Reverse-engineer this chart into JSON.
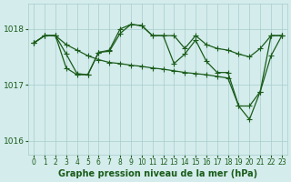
{
  "background_color": "#d4ecec",
  "grid_color": "#aacccc",
  "line_color": "#1a5c1a",
  "title": "Graphe pression niveau de la mer (hPa)",
  "ylim": [
    1015.75,
    1018.45
  ],
  "yticks": [
    1016,
    1017,
    1018
  ],
  "xlim": [
    -0.5,
    23.5
  ],
  "xticks": [
    0,
    1,
    2,
    3,
    4,
    5,
    6,
    7,
    8,
    9,
    10,
    11,
    12,
    13,
    14,
    15,
    16,
    17,
    18,
    19,
    20,
    21,
    22,
    23
  ],
  "series1_x": [
    0,
    1,
    2,
    3,
    4,
    5,
    6,
    7,
    8,
    9,
    10,
    11,
    12,
    13,
    14,
    15,
    16,
    17,
    18,
    19,
    20,
    21,
    22,
    23
  ],
  "series1_y": [
    1017.75,
    1017.88,
    1017.88,
    1017.55,
    1017.2,
    1017.18,
    1017.58,
    1017.6,
    1017.92,
    1018.08,
    1018.06,
    1017.88,
    1017.88,
    1017.88,
    1017.65,
    1017.88,
    1017.72,
    1017.65,
    1017.62,
    1017.55,
    1017.5,
    1017.65,
    1017.88,
    1017.88
  ],
  "series2_x": [
    0,
    1,
    2,
    3,
    4,
    5,
    6,
    7,
    8,
    9,
    10,
    11,
    12,
    13,
    14,
    15,
    16,
    17,
    18,
    19,
    20,
    21,
    22,
    23
  ],
  "series2_y": [
    1017.75,
    1017.88,
    1017.88,
    1017.3,
    1017.18,
    1017.18,
    1017.58,
    1017.62,
    1018.0,
    1018.08,
    1018.06,
    1017.88,
    1017.88,
    1017.38,
    1017.55,
    1017.8,
    1017.42,
    1017.22,
    1017.22,
    1016.62,
    1016.38,
    1016.88,
    1017.52,
    1017.88
  ],
  "series3_x": [
    0,
    1,
    2,
    3,
    4,
    5,
    6,
    7,
    8,
    9,
    10,
    11,
    12,
    13,
    14,
    15,
    16,
    17,
    18,
    19,
    20,
    21,
    22,
    23
  ],
  "series3_y": [
    1017.75,
    1017.88,
    1017.88,
    1017.72,
    1017.62,
    1017.52,
    1017.45,
    1017.4,
    1017.38,
    1017.35,
    1017.33,
    1017.3,
    1017.28,
    1017.25,
    1017.22,
    1017.2,
    1017.18,
    1017.15,
    1017.12,
    1016.62,
    1016.62,
    1016.88,
    1017.88,
    1017.88
  ],
  "markersize": 4,
  "linewidth": 0.9,
  "tick_fontsize": 5.5,
  "title_fontsize": 7
}
